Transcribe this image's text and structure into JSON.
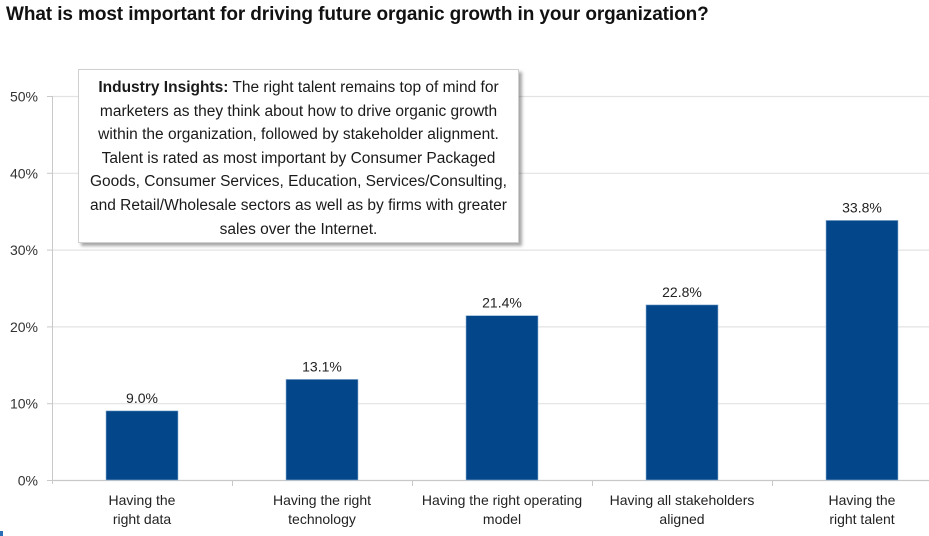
{
  "page": {
    "title": "What is most important for driving future organic growth in your organization?"
  },
  "insight_box": {
    "heading": "Industry Insights:",
    "text": "The right talent remains top of mind for marketers as they think about how to drive organic growth within the organization, followed by stakeholder alignment. Talent is rated as most important by Consumer Packaged Goods, Consumer Services, Education, Services/Consulting, and Retail/Wholesale sectors as well as by firms with greater sales over the Internet."
  },
  "chart_data": {
    "type": "bar",
    "title": "What is most important for driving future organic growth in your organization?",
    "xlabel": "",
    "ylabel": "",
    "categories": [
      [
        "Having the",
        "right data"
      ],
      [
        "Having the right",
        "technology"
      ],
      [
        "Having the right operating",
        "model"
      ],
      [
        "Having all stakeholders",
        "aligned"
      ],
      [
        "Having the",
        "right talent"
      ]
    ],
    "values": [
      9.0,
      13.1,
      21.4,
      22.8,
      33.8
    ],
    "data_labels": [
      "9.0%",
      "13.1%",
      "21.4%",
      "22.8%",
      "33.8%"
    ],
    "ylim": [
      0,
      50
    ],
    "yticks": [
      0,
      10,
      20,
      30,
      40,
      50
    ],
    "ytick_labels": [
      "0%",
      "10%",
      "20%",
      "30%",
      "40%",
      "50%"
    ],
    "grid": true,
    "legend": "none",
    "colors": {
      "bar": "#03478a",
      "bar_edge": "#8fb1d3",
      "grid": "#e3e3e3",
      "axis": "#c8c8c8"
    }
  }
}
